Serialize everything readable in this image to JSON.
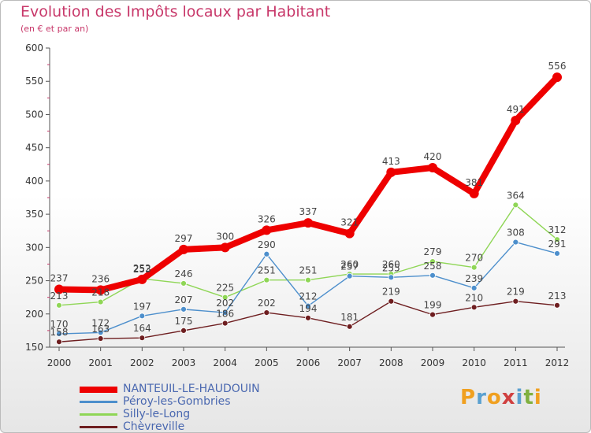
{
  "title": "Evolution des Impôts locaux par Habitant",
  "subtitle": "(en € et par an)",
  "logo": [
    "P",
    "r",
    "o",
    "x",
    "i",
    "t",
    "i"
  ],
  "chart_data": {
    "type": "line",
    "title": "Evolution des Impôts locaux par Habitant",
    "ylabel": "(en € et par an)",
    "xlabel": "",
    "ylim": [
      150,
      600
    ],
    "yticks": [
      150,
      200,
      250,
      300,
      350,
      400,
      450,
      500,
      550,
      600
    ],
    "x": [
      "2000",
      "2001",
      "2002",
      "2003",
      "2004",
      "2005",
      "2006",
      "2007",
      "2008",
      "2009",
      "2010",
      "2011",
      "2012"
    ],
    "grid": false,
    "legend": "bottom-left",
    "series": [
      {
        "name": "NANTEUIL-LE-HAUDOUIN",
        "color": "#ee0000",
        "values": [
          237,
          236,
          252,
          297,
          300,
          326,
          337,
          321,
          413,
          420,
          381,
          491,
          556
        ]
      },
      {
        "name": "Péroy-les-Gombries",
        "color": "#4d8fcc",
        "values": [
          170,
          172,
          197,
          207,
          202,
          290,
          212,
          257,
          255,
          258,
          239,
          308,
          291
        ]
      },
      {
        "name": "Silly-le-Long",
        "color": "#8fd656",
        "values": [
          213,
          218,
          253,
          246,
          225,
          251,
          251,
          260,
          260,
          279,
          270,
          364,
          312
        ]
      },
      {
        "name": "Chèvreville",
        "color": "#6e1e20",
        "values": [
          158,
          163,
          164,
          175,
          186,
          202,
          194,
          181,
          219,
          199,
          210,
          219,
          213
        ]
      }
    ]
  }
}
